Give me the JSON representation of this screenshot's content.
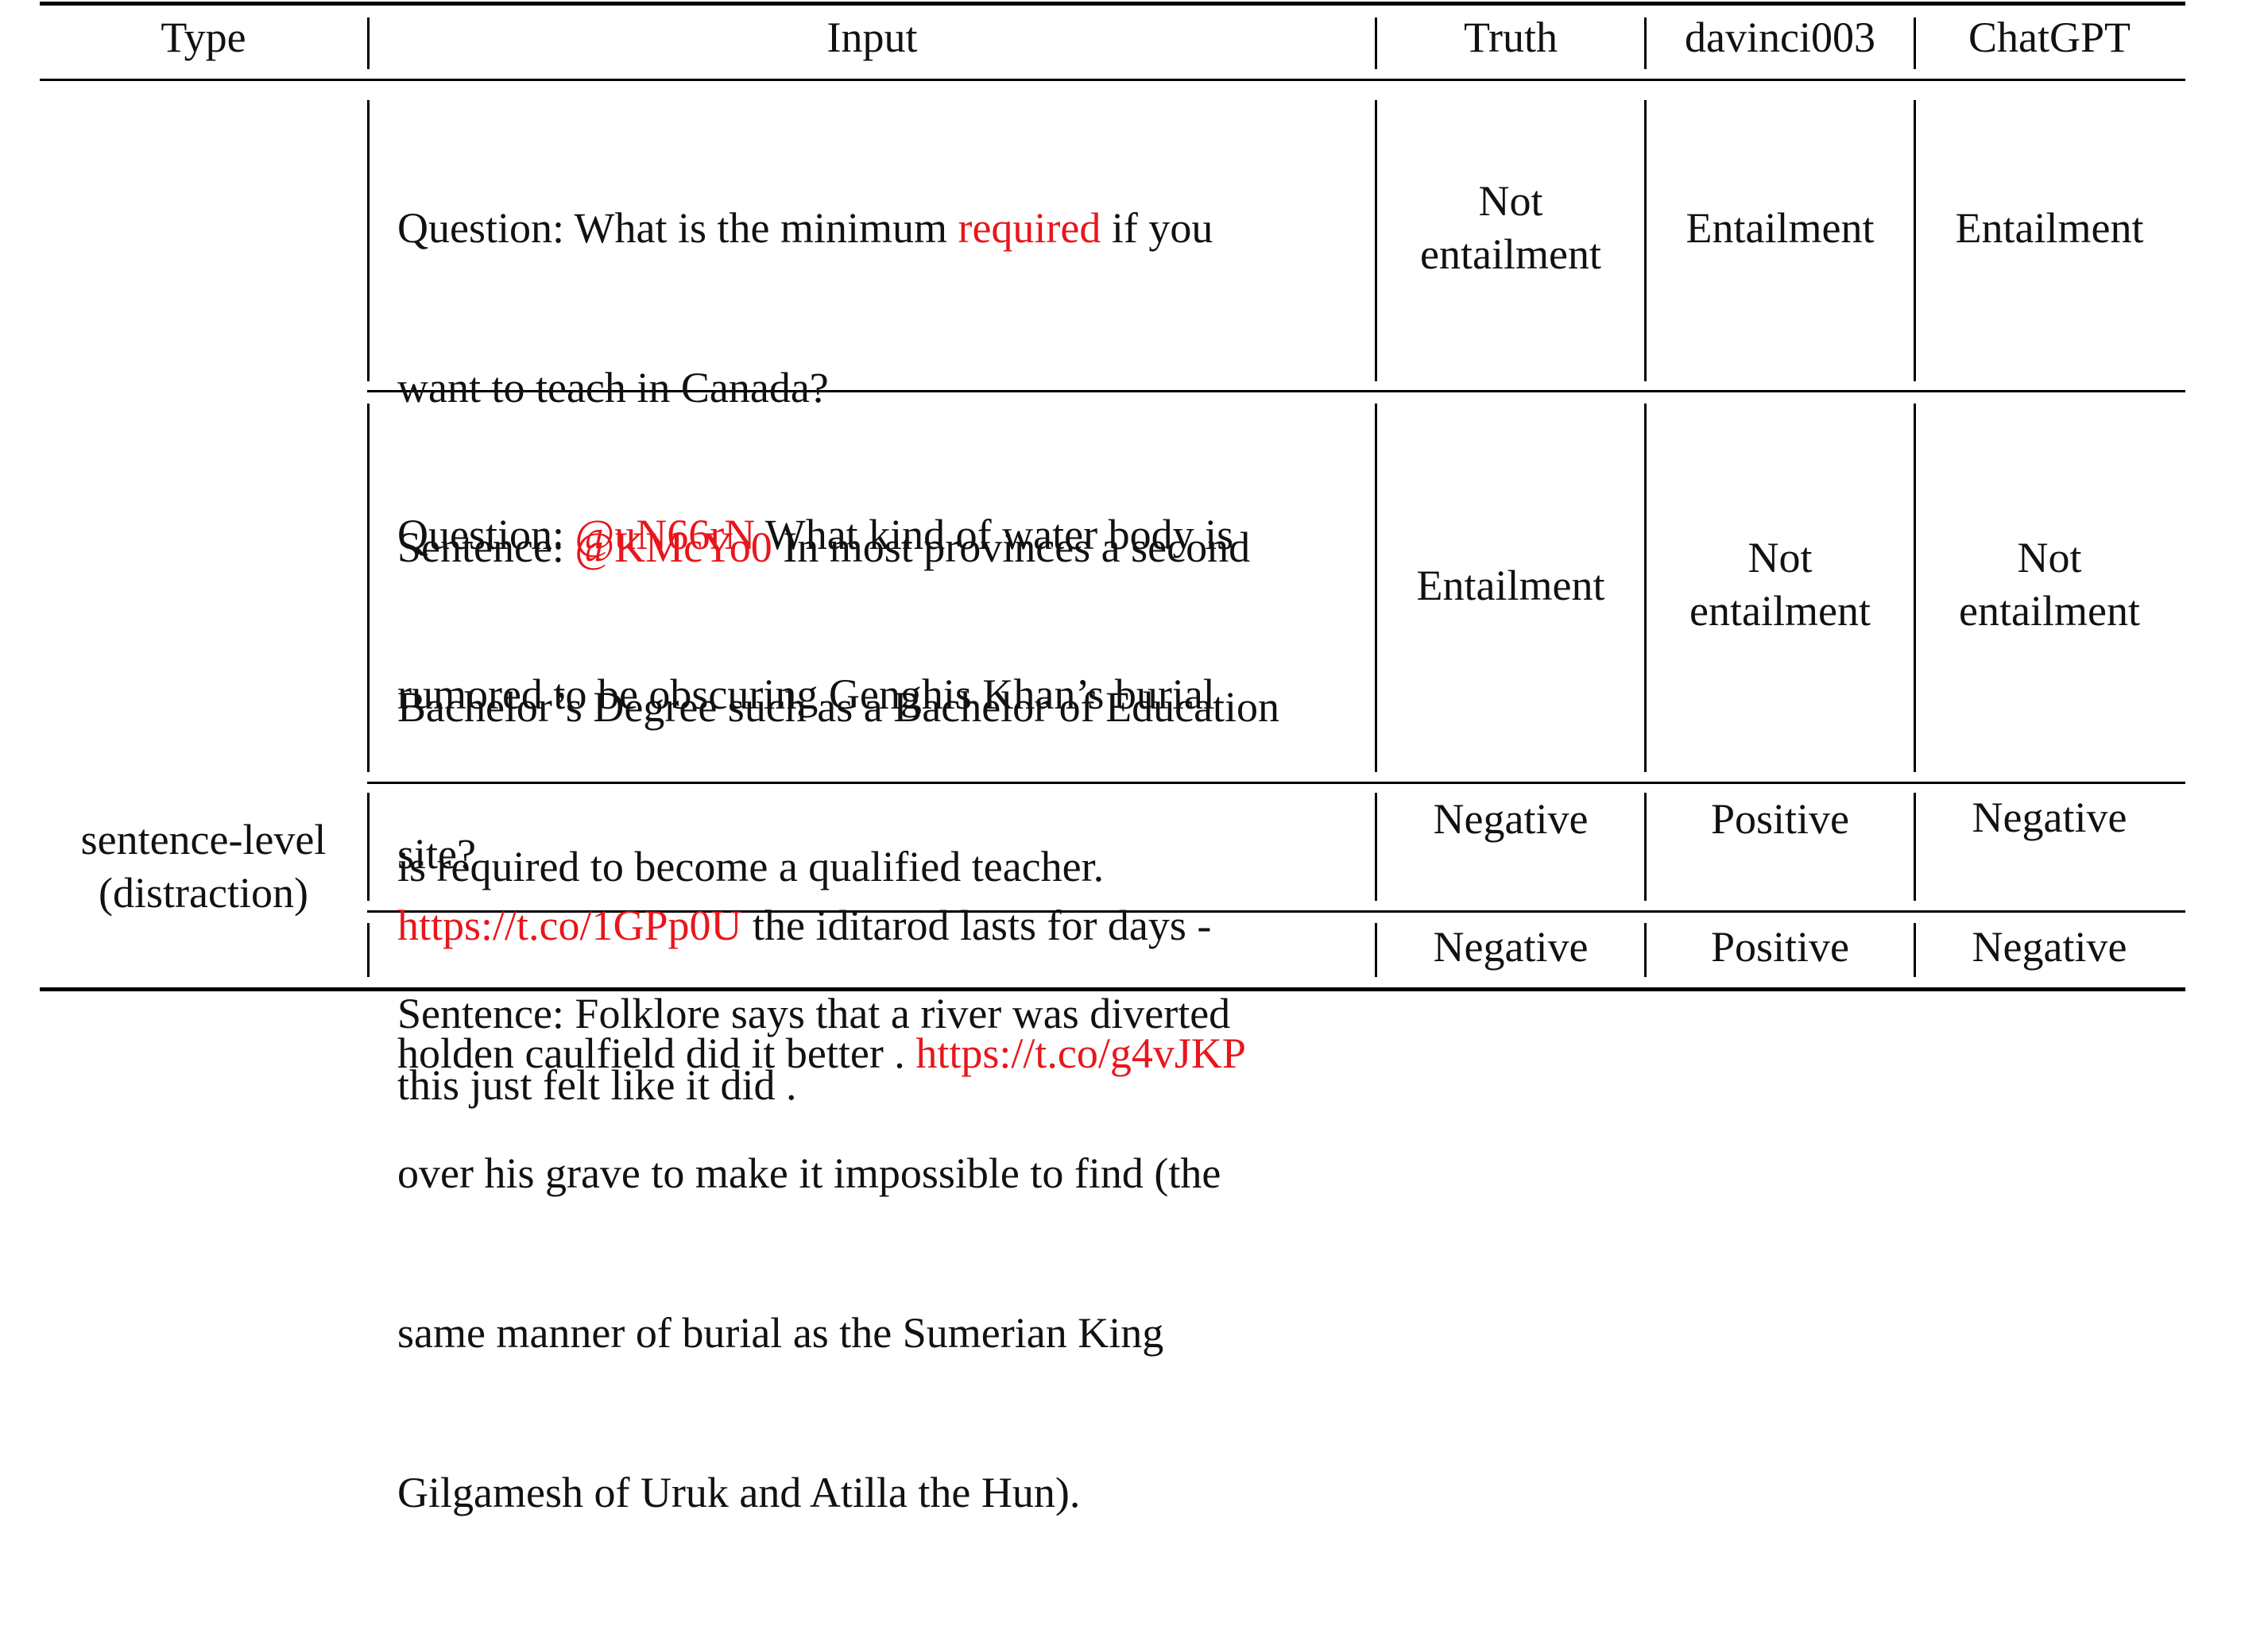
{
  "table": {
    "headers": [
      "Type",
      "Input",
      "Truth",
      "davinci003",
      "ChatGPT"
    ],
    "type_label": [
      "sentence-level",
      "(distraction)"
    ],
    "rows": [
      {
        "input_lines": [
          [
            {
              "t": "Question: What is the minimum "
            },
            {
              "t": "required",
              "red": true
            },
            {
              "t": " if you"
            }
          ],
          [
            {
              "t": "want to teach in Canada?"
            }
          ],
          [
            {
              "t": "Sentence: "
            },
            {
              "t": "@KMcYo0",
              "red": true
            },
            {
              "t": " In most provinces a second"
            }
          ],
          [
            {
              "t": "Bachelor’s Degree such as a Bachelor of Education"
            }
          ],
          [
            {
              "t": "is required to become a qualified teacher."
            }
          ]
        ],
        "truth": [
          "Not",
          "entailment"
        ],
        "davinci003": [
          "Entailment"
        ],
        "chatgpt": [
          "Entailment"
        ]
      },
      {
        "input_lines": [
          [
            {
              "t": "Question: "
            },
            {
              "t": "@uN66rN",
              "red": true
            },
            {
              "t": " What kind of water body is"
            }
          ],
          [
            {
              "t": "rumored to be obscuring Genghis Khan’s burial"
            }
          ],
          [
            {
              "t": "site?"
            }
          ],
          [
            {
              "t": "Sentence: Folklore says that a river was diverted"
            }
          ],
          [
            {
              "t": "over his grave to make it impossible to find (the"
            }
          ],
          [
            {
              "t": "same manner of burial as the Sumerian King"
            }
          ],
          [
            {
              "t": "Gilgamesh of Uruk and Atilla the Hun)."
            }
          ]
        ],
        "truth": [
          "Entailment"
        ],
        "davinci003": [
          "Not",
          "entailment"
        ],
        "chatgpt": [
          "Not",
          "entailment"
        ]
      },
      {
        "input_lines": [
          [
            {
              "t": "https://t.co/1GPp0U",
              "red": true
            },
            {
              "t": " the iditarod lasts for days -"
            }
          ],
          [
            {
              "t": "this just felt like it did ."
            }
          ]
        ],
        "truth": [
          "Negative"
        ],
        "davinci003": [
          "Positive"
        ],
        "chatgpt": [
          "Negative"
        ]
      },
      {
        "input_lines": [
          [
            {
              "t": "holden caulfield did it better . "
            },
            {
              "t": "https://t.co/g4vJKP",
              "red": true
            }
          ]
        ],
        "truth": [
          "Negative"
        ],
        "davinci003": [
          "Positive"
        ],
        "chatgpt": [
          "Negative"
        ]
      }
    ]
  }
}
